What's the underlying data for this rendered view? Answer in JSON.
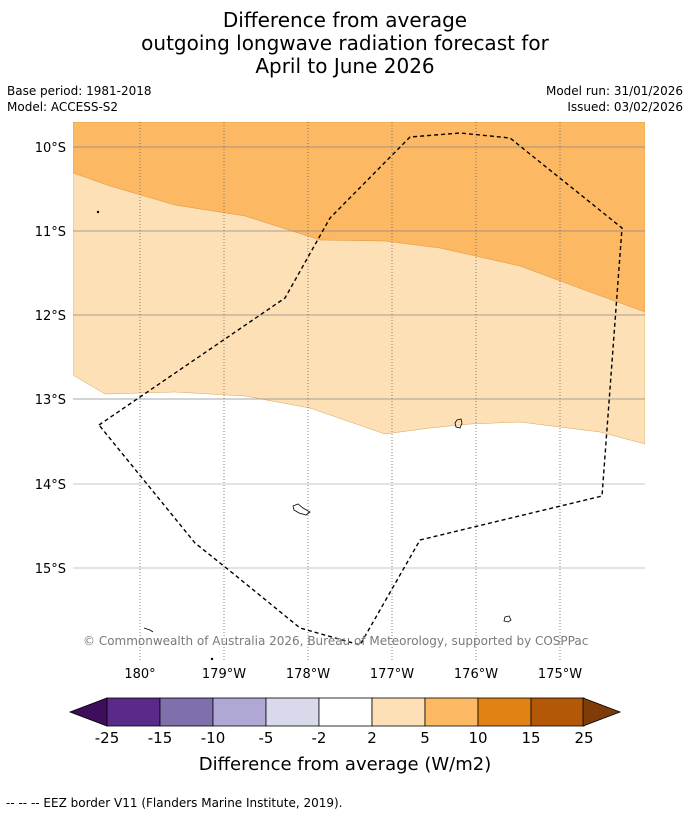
{
  "title": {
    "line1": "Difference from average",
    "line2": "outgoing longwave radiation forecast for",
    "line3": "April to June 2026"
  },
  "meta": {
    "base_period": "Base period: 1981-2018",
    "model": "Model: ACCESS-S2",
    "model_run": "Model run: 31/01/2026",
    "issued": "Issued: 03/02/2026"
  },
  "map": {
    "lat_labels": [
      "10°S",
      "11°S",
      "12°S",
      "13°S",
      "14°S",
      "15°S"
    ],
    "lon_labels": [
      "180°",
      "179°W",
      "178°W",
      "177°W",
      "176°W",
      "175°W"
    ],
    "copyright": "© Commonwealth of Australia 2026, Bureau of Meteorology, supported by COSPPac"
  },
  "colorbar": {
    "label": "Difference from average (W/m2)",
    "ticks": [
      "-25",
      "-15",
      "-10",
      "-5",
      "-2",
      "2",
      "5",
      "10",
      "15",
      "25"
    ],
    "colors": [
      "#5a2a8a",
      "#7f6fad",
      "#b0a8d4",
      "#d9d9ec",
      "#ffffff",
      "#fee0b6",
      "#fdb863",
      "#e08214",
      "#b35806"
    ],
    "under_color": "#3f0d5c",
    "over_color": "#7f3b08"
  },
  "footnote": "--  --  -- EEZ border V11 (Flanders Marine Institute, 2019)."
}
